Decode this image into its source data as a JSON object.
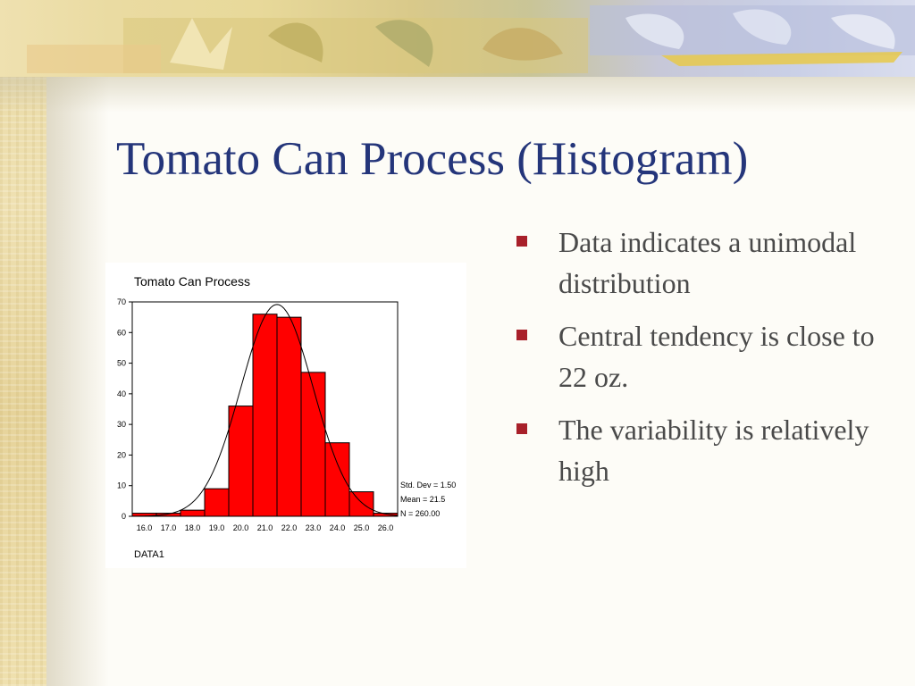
{
  "slide": {
    "title": "Tomato Can Process (Histogram)",
    "bullets": [
      "Data indicates a unimodal distribution",
      "Central tendency is close to 22 oz.",
      "The variability is relatively high"
    ],
    "accent_color": "#24357a",
    "bullet_color": "#a8202a"
  },
  "chart_data": {
    "type": "bar",
    "title": "Tomato Can Process",
    "xlabel": "DATA1",
    "ylabel": "",
    "categories": [
      "16.0",
      "17.0",
      "18.0",
      "19.0",
      "20.0",
      "21.0",
      "22.0",
      "23.0",
      "24.0",
      "25.0",
      "26.0"
    ],
    "values": [
      1,
      1,
      2,
      9,
      36,
      66,
      65,
      47,
      24,
      8,
      1
    ],
    "ylim": [
      0,
      70
    ],
    "yticks": [
      0,
      10,
      20,
      30,
      40,
      50,
      60,
      70
    ],
    "bar_color": "#ff0000",
    "normal_curve": {
      "mean": 21.5,
      "std_dev": 1.5,
      "n": 260
    },
    "stats_labels": [
      "Std. Dev = 1.50",
      "Mean = 21.5",
      "N = 260.00"
    ],
    "grid": false
  }
}
